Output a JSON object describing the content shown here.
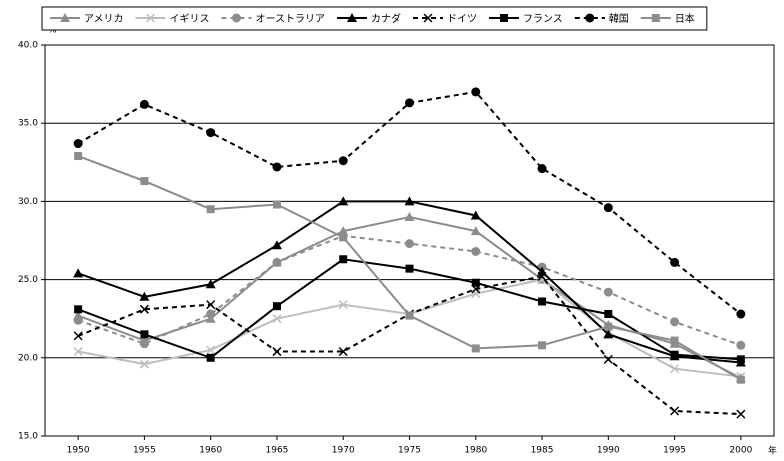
{
  "chart_data": {
    "type": "line",
    "y_unit": "%",
    "x_unit": "年",
    "x": [
      1950,
      1955,
      1960,
      1965,
      1970,
      1975,
      1980,
      1985,
      1990,
      1995,
      2000
    ],
    "xlim": [
      1947.5,
      2002.5
    ],
    "xticks": [
      1950,
      1955,
      1960,
      1965,
      1970,
      1975,
      1980,
      1985,
      1990,
      1995,
      2000
    ],
    "ylim": [
      15,
      40
    ],
    "yticks": [
      {
        "value": 15,
        "label": "15.0"
      },
      {
        "value": 20,
        "label": "20.0"
      },
      {
        "value": 25,
        "label": "25.0"
      },
      {
        "value": 30,
        "label": "30.0"
      },
      {
        "value": 35,
        "label": "35.0"
      },
      {
        "value": 40,
        "label": "40.0"
      }
    ],
    "grid": true,
    "legend": "top",
    "series": [
      {
        "name": "アメリカ",
        "color": "#8c8c8c",
        "marker": "triangle",
        "dash": false,
        "values": [
          22.7,
          21.1,
          22.5,
          26.1,
          28.1,
          29.0,
          28.1,
          25.0,
          22.1,
          20.9,
          18.7
        ]
      },
      {
        "name": "イギリス",
        "color": "#bdbdbd",
        "marker": "x",
        "dash": false,
        "values": [
          20.4,
          19.6,
          20.5,
          22.5,
          23.4,
          22.8,
          24.1,
          25.0,
          21.6,
          19.3,
          18.8
        ]
      },
      {
        "name": "オーストラリア",
        "color": "#8c8c8c",
        "marker": "circle",
        "dash": true,
        "values": [
          22.4,
          20.9,
          22.8,
          26.1,
          27.8,
          27.3,
          26.8,
          25.8,
          24.2,
          22.3,
          20.8
        ]
      },
      {
        "name": "カナダ",
        "color": "#000000",
        "marker": "triangle",
        "dash": false,
        "values": [
          25.4,
          23.9,
          24.7,
          27.2,
          30.0,
          30.0,
          29.1,
          25.5,
          21.5,
          20.1,
          19.7
        ]
      },
      {
        "name": "ドイツ",
        "color": "#000000",
        "marker": "x",
        "dash": true,
        "values": [
          21.4,
          23.1,
          23.4,
          20.4,
          20.4,
          22.8,
          24.4,
          25.2,
          19.9,
          16.6,
          16.4
        ]
      },
      {
        "name": "フランス",
        "color": "#000000",
        "marker": "square",
        "dash": false,
        "values": [
          23.1,
          21.5,
          20.0,
          23.3,
          26.3,
          25.7,
          24.8,
          23.6,
          22.8,
          20.2,
          19.9
        ]
      },
      {
        "name": "韓国",
        "color": "#000000",
        "marker": "circle",
        "dash": true,
        "values": [
          33.7,
          36.2,
          34.4,
          32.2,
          32.6,
          36.3,
          37.0,
          32.1,
          29.6,
          26.1,
          22.8
        ]
      },
      {
        "name": "日本",
        "color": "#8c8c8c",
        "marker": "square",
        "dash": false,
        "values": [
          32.9,
          31.3,
          29.5,
          29.8,
          27.7,
          22.7,
          20.6,
          20.8,
          22.0,
          21.1,
          18.6
        ]
      }
    ]
  }
}
